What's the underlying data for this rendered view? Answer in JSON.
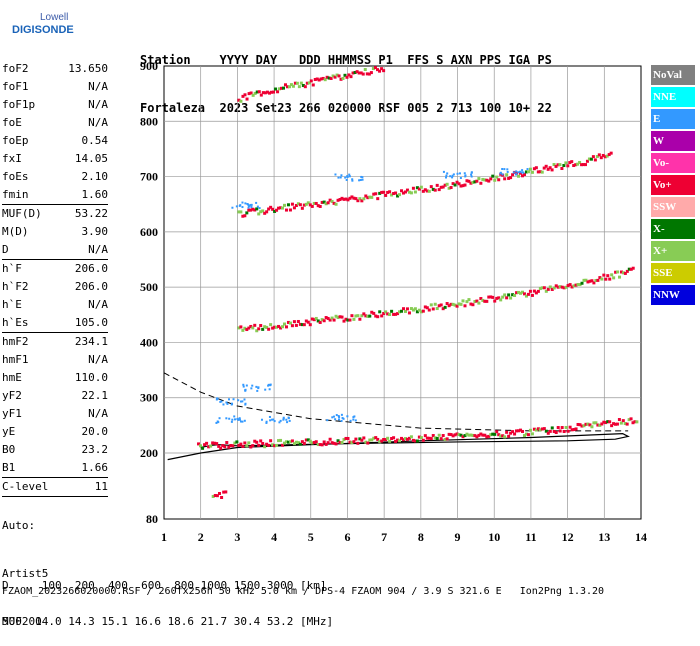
{
  "logo": {
    "top": "Lowell",
    "main": "DIGISONDE"
  },
  "header": {
    "line1": "Station    YYYY DAY   DDD HHMMSS P1  FFS S AXN PPS IGA PS",
    "line2": "Fortaleza  2023 Set23 266 020000 RSF 005 2 713 100 10+ 22"
  },
  "params": [
    [
      {
        "label": "foF2",
        "value": "13.650"
      },
      {
        "label": "foF1",
        "value": "N/A"
      },
      {
        "label": "foF1p",
        "value": "N/A"
      },
      {
        "label": "foE",
        "value": "N/A"
      },
      {
        "label": "foEp",
        "value": "0.54"
      },
      {
        "label": "fxI",
        "value": "14.05"
      },
      {
        "label": "foEs",
        "value": "2.10"
      },
      {
        "label": "fmin",
        "value": "1.60"
      }
    ],
    [
      {
        "label": "MUF(D)",
        "value": "53.22"
      },
      {
        "label": "M(D)",
        "value": "3.90"
      },
      {
        "label": "D",
        "value": "N/A"
      }
    ],
    [
      {
        "label": "h`F",
        "value": "206.0"
      },
      {
        "label": "h`F2",
        "value": "206.0"
      },
      {
        "label": "h`E",
        "value": "N/A"
      },
      {
        "label": "h`Es",
        "value": "105.0"
      }
    ],
    [
      {
        "label": "hmF2",
        "value": "234.1"
      },
      {
        "label": "hmF1",
        "value": "N/A"
      },
      {
        "label": "hmE",
        "value": "110.0"
      },
      {
        "label": "yF2",
        "value": "22.1"
      },
      {
        "label": "yF1",
        "value": "N/A"
      },
      {
        "label": "yE",
        "value": "20.0"
      },
      {
        "label": "B0",
        "value": "23.2"
      },
      {
        "label": "B1",
        "value": "1.66"
      }
    ],
    [
      {
        "label": "C-level",
        "value": "11"
      }
    ]
  ],
  "auto": {
    "line1": "Auto:",
    "line2": "Artist5",
    "line3": "500200"
  },
  "bottom": {
    "d_line": "D     100  200  400  600  800 1000 1500 3000 [km]",
    "muf_line": "MUF  14.0 14.3 15.1 16.6 18.6 21.7 30.4 53.2 [MHz]"
  },
  "footer": "FZAOM_2023266020000.RSF / 260fx256h 50 kHz 5.0 km / DPS-4 FZAOM 904 / 3.9 S 321.6 E   Ion2Png 1.3.20",
  "legend": [
    {
      "label": "NoVal",
      "color": "#808080"
    },
    {
      "label": "NNE",
      "color": "#00ffff"
    },
    {
      "label": "E",
      "color": "#3399ff"
    },
    {
      "label": "W",
      "color": "#aa00aa"
    },
    {
      "label": "Vo-",
      "color": "#ff33aa"
    },
    {
      "label": "Vo+",
      "color": "#ee0033"
    },
    {
      "label": "SSW",
      "color": "#ffaaaa"
    },
    {
      "label": "X-",
      "color": "#007700"
    },
    {
      "label": "X+",
      "color": "#88cc55"
    },
    {
      "label": "SSE",
      "color": "#cccc00"
    },
    {
      "label": "NNW",
      "color": "#0000dd"
    }
  ],
  "chart_data": {
    "type": "scatter",
    "xlim": [
      1,
      14
    ],
    "ylim": [
      80,
      900
    ],
    "x_ticks": [
      1,
      2,
      3,
      4,
      5,
      6,
      7,
      8,
      9,
      10,
      11,
      12,
      13,
      14
    ],
    "y_ticks": [
      80,
      200,
      300,
      400,
      500,
      600,
      700,
      800,
      900
    ],
    "grid": true,
    "traces": [
      {
        "name": "Vo+",
        "points": [
          [
            1.9,
            215
          ],
          [
            3,
            218
          ],
          [
            5,
            222
          ],
          [
            7,
            226
          ],
          [
            9,
            232
          ],
          [
            11,
            240
          ],
          [
            13,
            255
          ],
          [
            13.9,
            262
          ]
        ]
      },
      {
        "name": "Vo+",
        "points": [
          [
            3,
            425
          ],
          [
            5,
            440
          ],
          [
            7,
            455
          ],
          [
            9,
            472
          ],
          [
            11,
            493
          ],
          [
            13,
            520
          ],
          [
            13.8,
            533
          ]
        ]
      },
      {
        "name": "Vo+",
        "points": [
          [
            3,
            635
          ],
          [
            5,
            652
          ],
          [
            7,
            670
          ],
          [
            9,
            688
          ],
          [
            11,
            712
          ],
          [
            12.5,
            730
          ],
          [
            13.2,
            745
          ]
        ]
      },
      {
        "name": "Vo+",
        "points": [
          [
            3,
            843
          ],
          [
            4,
            860
          ],
          [
            6,
            885
          ],
          [
            7,
            900
          ]
        ]
      },
      {
        "name": "Vo+",
        "points": [
          [
            2.3,
            125
          ],
          [
            2.7,
            128
          ]
        ]
      },
      {
        "name": "E",
        "points": [
          [
            2.8,
            295
          ],
          [
            3.5,
            320
          ],
          [
            2.8,
            262
          ],
          [
            4,
            262
          ],
          [
            5.8,
            265
          ],
          [
            3.2,
            650
          ],
          [
            6,
            700
          ],
          [
            9,
            705
          ],
          [
            10.5,
            710
          ]
        ]
      }
    ],
    "profile_x": [
      [
        1.1,
        188
      ],
      [
        2,
        200
      ],
      [
        3,
        210
      ],
      [
        5,
        215
      ],
      [
        8,
        222
      ],
      [
        11,
        228
      ],
      [
        13.5,
        235
      ],
      [
        13.65,
        230
      ],
      [
        13.3,
        225
      ],
      [
        12,
        222
      ],
      [
        9,
        220
      ],
      [
        6,
        217
      ],
      [
        3,
        213
      ],
      [
        2.5,
        215
      ],
      [
        2.3,
        214
      ],
      [
        2,
        210
      ]
    ],
    "profile_o": [
      [
        1,
        345
      ],
      [
        2,
        310
      ],
      [
        3,
        285
      ],
      [
        5,
        262
      ],
      [
        8,
        245
      ],
      [
        11,
        240
      ],
      [
        13.65,
        240
      ]
    ]
  }
}
